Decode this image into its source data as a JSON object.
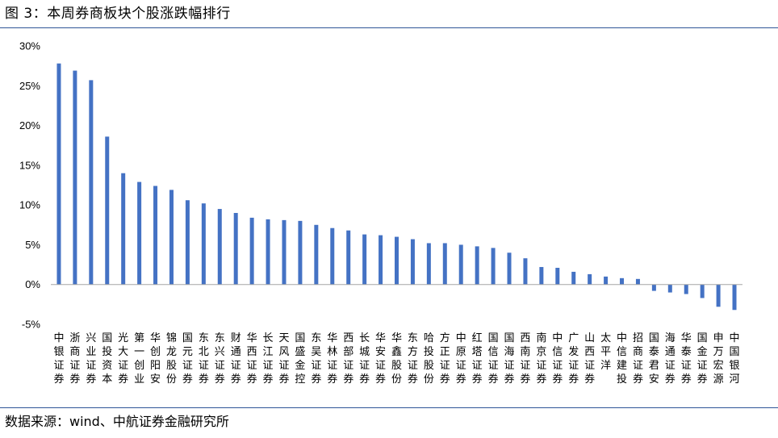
{
  "figure": {
    "title": "图 3：本周券商板块个股涨跌幅排行",
    "source": "数据来源：wind、中航证券金融研究所"
  },
  "colors": {
    "bar": "#4472c4",
    "rule": "#2f5597",
    "axis": "#a6a6a6"
  },
  "chart_data": {
    "type": "bar",
    "ylim": [
      -5,
      30
    ],
    "yticks": [
      "30%",
      "25%",
      "20%",
      "15%",
      "10%",
      "5%",
      "0%",
      "-5%"
    ],
    "ytick_values": [
      30,
      25,
      20,
      15,
      10,
      5,
      0,
      -5
    ],
    "grid": false,
    "legend": "none",
    "categories": [
      "中银证券",
      "浙商证券",
      "兴业证券",
      "国投资本",
      "光大证券",
      "第一创业",
      "华创阳安",
      "锦龙股份",
      "国元证券",
      "东北证券",
      "东兴证券",
      "财通证券",
      "华西证券",
      "长江证券",
      "天风证券",
      "国盛金控",
      "东吴证券",
      "华林证券",
      "西部证券",
      "长城证券",
      "华安证券",
      "华鑫股份",
      "东方证券",
      "哈投股份",
      "方正证券",
      "中原证券",
      "红塔证券",
      "国信证券",
      "国海证券",
      "西南证券",
      "南京证券",
      "中信证券",
      "广发证券",
      "山西证券",
      "太平洋",
      "中信建投",
      "招商证券",
      "国泰君安",
      "海通证券",
      "华泰证券",
      "国金证券",
      "申万宏源",
      "中国银河"
    ],
    "values": [
      27.8,
      26.9,
      25.7,
      18.6,
      14.0,
      12.9,
      12.4,
      11.9,
      10.6,
      10.2,
      9.5,
      9.0,
      8.4,
      8.2,
      8.1,
      8.0,
      7.5,
      7.1,
      6.8,
      6.3,
      6.2,
      6.0,
      5.7,
      5.2,
      5.2,
      5.0,
      4.8,
      4.6,
      4.0,
      3.3,
      2.2,
      2.1,
      1.6,
      1.3,
      1.0,
      0.8,
      0.7,
      -0.8,
      -1.0,
      -1.2,
      -1.7,
      -2.8,
      -3.2
    ]
  }
}
